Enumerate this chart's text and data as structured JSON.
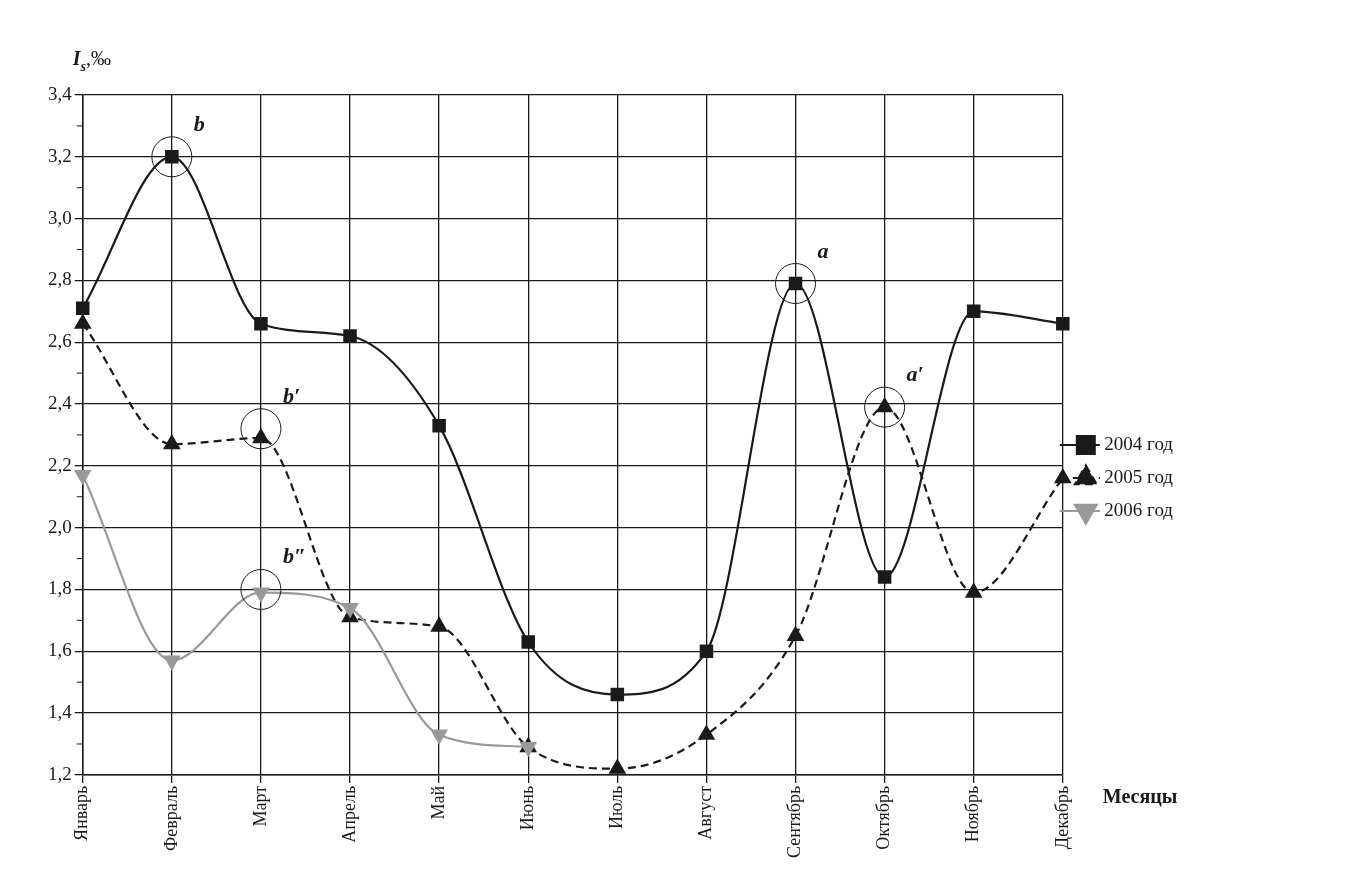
{
  "chart_data": {
    "type": "line",
    "ylabel": "I$_{s}$,‰",
    "xlabel": "Месяцы",
    "categories": [
      "Январь",
      "Февраль",
      "Март",
      "Апрель",
      "Май",
      "Июнь",
      "Июль",
      "Август",
      "Сентябрь",
      "Октябрь",
      "Ноябрь",
      "Декабрь"
    ],
    "series": [
      {
        "name": "2004 год",
        "color": "#1a1a1a",
        "marker": "square",
        "line_style": "solid",
        "values": [
          2.71,
          3.2,
          2.66,
          2.62,
          2.33,
          1.63,
          1.46,
          1.6,
          2.79,
          1.84,
          2.7,
          2.66
        ]
      },
      {
        "name": "2005 год",
        "color": "#1a1a1a",
        "marker": "triangle",
        "line_style": "dashed",
        "values": [
          2.66,
          2.27,
          2.29,
          1.71,
          1.68,
          1.29,
          1.22,
          1.33,
          1.65,
          2.39,
          1.79,
          2.16
        ]
      },
      {
        "name": "2006 год",
        "color": "#999999",
        "marker": "triangle-down",
        "line_style": "solid",
        "values": [
          2.17,
          1.57,
          1.79,
          1.74,
          1.33,
          1.29,
          null,
          null,
          null,
          null,
          null,
          null
        ]
      }
    ],
    "ylim": [
      1.2,
      3.4
    ],
    "yticks": [
      {
        "value": 1.2,
        "label": "1,2"
      },
      {
        "value": 1.3,
        "label": null
      },
      {
        "value": 1.4,
        "label": "1,4"
      },
      {
        "value": 1.5,
        "label": null
      },
      {
        "value": 1.6,
        "label": "1,6"
      },
      {
        "value": 1.7,
        "label": null
      },
      {
        "value": 1.8,
        "label": "1,8"
      },
      {
        "value": 1.9,
        "label": null
      },
      {
        "value": 2.0,
        "label": "2,0"
      },
      {
        "value": 2.1,
        "label": null
      },
      {
        "value": 2.2,
        "label": "2,2"
      },
      {
        "value": 2.3,
        "label": null
      },
      {
        "value": 2.4,
        "label": "2,4"
      },
      {
        "value": 2.5,
        "label": null
      },
      {
        "value": 2.6,
        "label": "2,6"
      },
      {
        "value": 2.7,
        "label": null
      },
      {
        "value": 2.8,
        "label": "2,8"
      },
      {
        "value": 2.9,
        "label": null
      },
      {
        "value": 3.0,
        "label": "3,0"
      },
      {
        "value": 3.1,
        "label": null
      },
      {
        "value": 3.2,
        "label": "3,2"
      },
      {
        "value": 3.3,
        "label": null
      },
      {
        "value": 3.4,
        "label": "3,4"
      }
    ],
    "annotations": [
      {
        "text": "b",
        "x": "Февраль",
        "y": 3.2
      },
      {
        "text": "b′",
        "x": "Март",
        "y": 2.32
      },
      {
        "text": "b″",
        "x": "Март",
        "y": 1.8
      },
      {
        "text": "a",
        "x": "Сентябрь",
        "y": 2.79
      },
      {
        "text": "a′",
        "x": "Октябрь",
        "y": 2.39
      }
    ],
    "grid": true,
    "legend": "right"
  }
}
